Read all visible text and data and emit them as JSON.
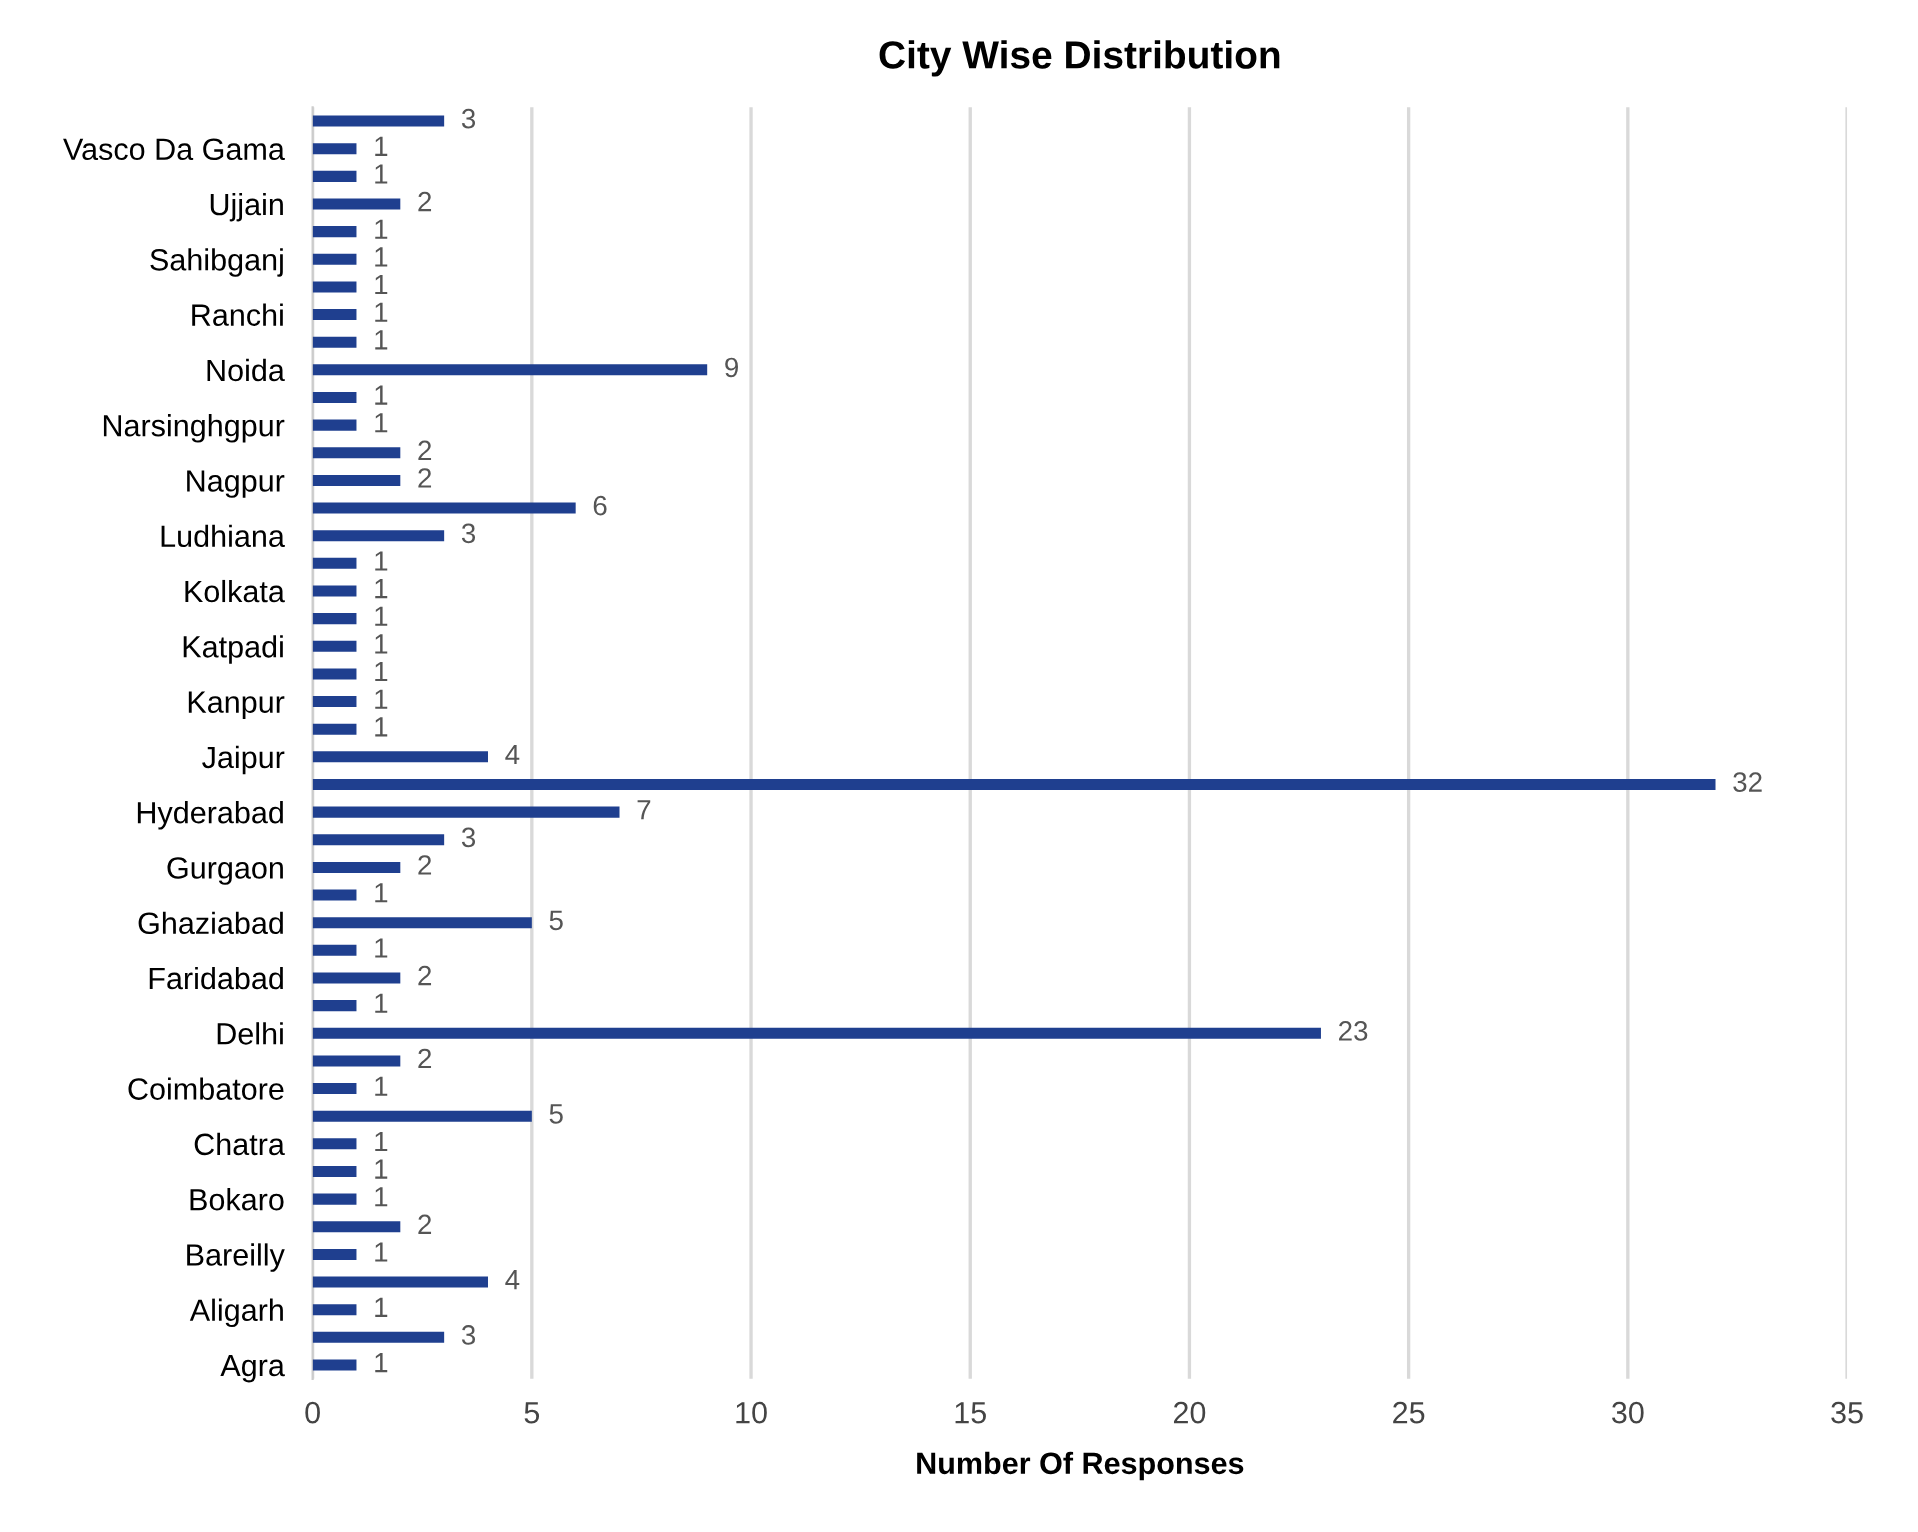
{
  "chart_data": {
    "type": "bar",
    "orientation": "horizontal",
    "title": "City Wise Distribution",
    "xlabel": "Number Of Responses",
    "categories": [
      null,
      "Vasco Da Gama",
      null,
      "Ujjain",
      null,
      "Sahibganj",
      null,
      "Ranchi",
      null,
      "Noida",
      null,
      "Narsinghgpur",
      null,
      "Nagpur",
      null,
      "Ludhiana",
      null,
      "Kolkata",
      null,
      "Katpadi",
      null,
      "Kanpur",
      null,
      "Jaipur",
      null,
      "Hyderabad",
      null,
      "Gurgaon",
      null,
      "Ghaziabad",
      null,
      "Faridabad",
      null,
      "Delhi",
      null,
      "Coimbatore",
      null,
      "Chatra",
      null,
      "Bokaro",
      null,
      "Bareilly",
      null,
      "Aligarh",
      null,
      "Agra"
    ],
    "values": [
      3,
      1,
      1,
      2,
      1,
      1,
      1,
      1,
      1,
      9,
      1,
      1,
      2,
      2,
      6,
      3,
      1,
      1,
      1,
      1,
      1,
      1,
      1,
      4,
      32,
      7,
      3,
      2,
      1,
      5,
      1,
      2,
      1,
      23,
      2,
      1,
      5,
      1,
      1,
      1,
      2,
      1,
      4,
      1,
      3,
      1
    ],
    "color": "#1f3f8f",
    "xlim": [
      0,
      35
    ],
    "xticks": [
      0,
      5,
      10,
      15,
      20,
      25,
      30,
      35
    ],
    "grid": "x",
    "data_labels": true,
    "legend": false
  }
}
